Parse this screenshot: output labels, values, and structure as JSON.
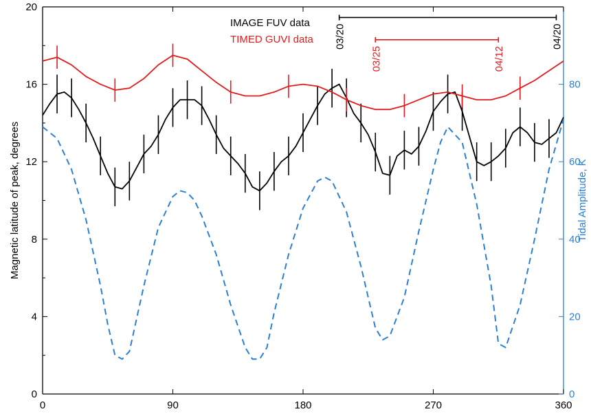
{
  "chart_data": {
    "type": "line",
    "title": "",
    "xlabel": "",
    "xlim": [
      0,
      360
    ],
    "x_ticks": [
      "0",
      "90",
      "180",
      "270",
      "360"
    ],
    "y_left": {
      "label": "Magnetic latitude of peak, degrees",
      "lim": [
        0,
        20
      ],
      "ticks": [
        "0",
        "4",
        "8",
        "12",
        "16",
        "20"
      ],
      "color": "#000000"
    },
    "y_right": {
      "label": "Tidal Amplitude, K",
      "lim": [
        0,
        100
      ],
      "ticks": [
        "0",
        "20",
        "40",
        "60",
        "80"
      ],
      "color": "#2a7fd4"
    },
    "legend_position": "top-center",
    "series": [
      {
        "name": "IMAGE FUV data",
        "color": "#000000",
        "axis": "left",
        "style": "solid",
        "x": [
          0,
          5,
          10,
          15,
          20,
          25,
          30,
          35,
          40,
          45,
          50,
          55,
          60,
          65,
          70,
          75,
          80,
          85,
          90,
          95,
          100,
          105,
          110,
          115,
          120,
          125,
          130,
          135,
          140,
          145,
          150,
          155,
          160,
          165,
          170,
          175,
          180,
          185,
          190,
          195,
          200,
          205,
          210,
          215,
          220,
          225,
          230,
          235,
          240,
          245,
          250,
          255,
          260,
          265,
          270,
          275,
          280,
          285,
          290,
          295,
          300,
          305,
          310,
          315,
          320,
          325,
          330,
          335,
          340,
          345,
          350,
          355,
          360
        ],
        "values": [
          14.4,
          15.0,
          15.5,
          15.6,
          15.3,
          14.7,
          14.0,
          13.2,
          12.3,
          11.4,
          10.7,
          10.6,
          11.0,
          11.7,
          12.4,
          12.8,
          13.4,
          14.2,
          14.8,
          15.2,
          15.2,
          15.2,
          14.9,
          14.2,
          13.4,
          12.7,
          12.3,
          11.9,
          11.4,
          10.7,
          10.5,
          10.9,
          11.5,
          12.0,
          12.3,
          12.8,
          13.5,
          14.2,
          14.9,
          15.5,
          15.8,
          16.0,
          15.3,
          14.5,
          14.0,
          13.4,
          12.5,
          11.4,
          11.3,
          12.3,
          12.6,
          12.4,
          12.8,
          13.6,
          14.6,
          15.1,
          15.5,
          15.6,
          14.6,
          13.3,
          12.0,
          11.8,
          12.0,
          12.3,
          12.7,
          13.5,
          13.8,
          13.5,
          13.0,
          12.9,
          13.2,
          13.5,
          14.3
        ],
        "error_bars": {
          "x": [
            10,
            20,
            30,
            40,
            50,
            60,
            70,
            80,
            90,
            100,
            110,
            120,
            130,
            140,
            150,
            160,
            170,
            180,
            190,
            200,
            210,
            220,
            230,
            240,
            250,
            260,
            270,
            280,
            290,
            300,
            310,
            320,
            330,
            340,
            350
          ],
          "half_width": 1.0
        }
      },
      {
        "name": "TIMED GUVI data",
        "color": "#e31a1c",
        "axis": "left",
        "style": "solid",
        "x": [
          0,
          10,
          20,
          30,
          40,
          50,
          60,
          70,
          80,
          90,
          100,
          110,
          120,
          130,
          140,
          150,
          160,
          170,
          180,
          190,
          200,
          210,
          220,
          230,
          240,
          250,
          260,
          270,
          280,
          290,
          300,
          310,
          320,
          330,
          340,
          350,
          360
        ],
        "values": [
          17.2,
          17.4,
          17.0,
          16.4,
          16.0,
          15.7,
          15.8,
          16.3,
          17.0,
          17.5,
          17.3,
          16.7,
          16.1,
          15.6,
          15.4,
          15.4,
          15.6,
          15.9,
          16.0,
          15.9,
          15.6,
          15.2,
          14.9,
          14.7,
          14.7,
          14.9,
          15.2,
          15.5,
          15.6,
          15.4,
          15.2,
          15.2,
          15.4,
          15.8,
          16.2,
          16.7,
          17.2
        ],
        "ticks_at": [
          10,
          50,
          90,
          130,
          170,
          210,
          250,
          290,
          330
        ],
        "tick_half_width": 0.6
      },
      {
        "name": "",
        "color": "#2a7fd4",
        "axis": "right",
        "style": "dashed",
        "x": [
          0,
          10,
          20,
          30,
          40,
          45,
          50,
          55,
          60,
          70,
          80,
          90,
          95,
          100,
          105,
          110,
          120,
          130,
          140,
          145,
          150,
          155,
          160,
          170,
          180,
          190,
          195,
          200,
          210,
          220,
          230,
          235,
          240,
          250,
          260,
          270,
          275,
          280,
          290,
          300,
          310,
          315,
          320,
          330,
          340,
          350,
          360
        ],
        "values": [
          69,
          66,
          58,
          45,
          28,
          18,
          10,
          9,
          11,
          28,
          43,
          51,
          52.5,
          52,
          50,
          46,
          36,
          23,
          12,
          9,
          9,
          12,
          21,
          36,
          48,
          55,
          56,
          55,
          47,
          33,
          17,
          14,
          15,
          25,
          42,
          58,
          65,
          69,
          65,
          49,
          28,
          13,
          12,
          23,
          40,
          58,
          71
        ]
      }
    ],
    "annotations": {
      "black_range": {
        "x": [
          205,
          355
        ],
        "y": 19.45,
        "start_label": "03/20",
        "end_label": "04/20",
        "color": "#000000"
      },
      "red_range": {
        "x": [
          230,
          315
        ],
        "y": 18.3,
        "start_label": "03/25",
        "end_label": "04/12",
        "color": "#e31a1c"
      }
    }
  }
}
